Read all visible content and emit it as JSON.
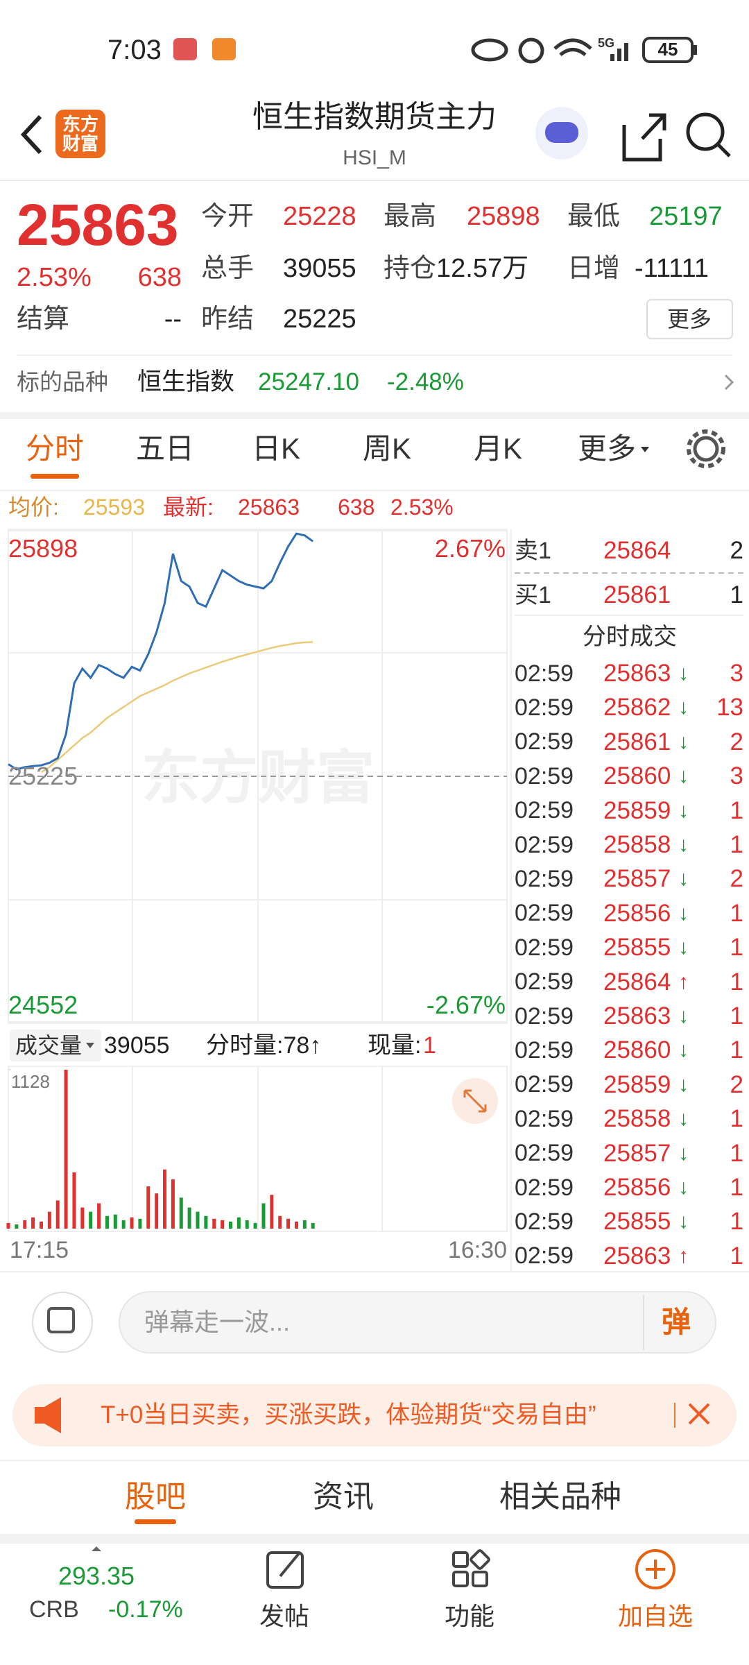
{
  "status_bar": {
    "time": "7:03",
    "network": "5G",
    "battery": "45"
  },
  "header": {
    "logo": [
      "东方",
      "财富"
    ],
    "title": "恒生指数期货主力",
    "subtitle": "HSI_M"
  },
  "quote": {
    "price": "25863",
    "change_pct": "2.53%",
    "change": "638",
    "fields": [
      {
        "label": "今开",
        "value": "25228",
        "color": "#e0302f"
      },
      {
        "label": "最高",
        "value": "25898",
        "color": "#e0302f"
      },
      {
        "label": "最低",
        "value": "25197",
        "color": "#1a9a36"
      },
      {
        "label": "总手",
        "value": "39055",
        "color": "#222222"
      },
      {
        "label": "持仓",
        "value": "12.57万",
        "color": "#222222"
      },
      {
        "label": "日增",
        "value": "-11111",
        "color": "#222222"
      },
      {
        "label": "结算",
        "value": "--",
        "color": "#222222"
      },
      {
        "label": "昨结",
        "value": "25225",
        "color": "#222222"
      }
    ],
    "more_button": "更多"
  },
  "underlying": {
    "label": "标的品种",
    "name": "恒生指数",
    "price": "25247.10",
    "change_pct": "-2.48%"
  },
  "tabs": {
    "items": [
      "分时",
      "五日",
      "日K",
      "周K",
      "月K",
      "更多"
    ],
    "active": 0
  },
  "chart": {
    "avg_label": "均价:",
    "avg_value": "25593",
    "latest_label": "最新:",
    "latest_value": "25863",
    "latest_change": "638",
    "latest_pct": "2.53%",
    "watermark": "东方财富",
    "ylim": [
      24552,
      25898
    ],
    "yticks": [
      25898,
      25225,
      24552
    ],
    "pct_top": "2.67%",
    "pct_bottom": "-2.67%",
    "price": {
      "color": "#2f6db5",
      "values": [
        25258,
        25244,
        25250,
        25253,
        25255,
        25262,
        25275,
        25340,
        25480,
        25520,
        25495,
        25530,
        25520,
        25505,
        25495,
        25525,
        25515,
        25560,
        25620,
        25700,
        25835,
        25760,
        25745,
        25700,
        25690,
        25740,
        25790,
        25775,
        25760,
        25750,
        25745,
        25740,
        25760,
        25810,
        25855,
        25890,
        25885,
        25869
      ]
    },
    "average": {
      "color": "#ebcb7a",
      "values": [
        null,
        null,
        null,
        null,
        25236,
        25250,
        25270,
        25290,
        25310,
        25330,
        25345,
        25365,
        25385,
        25400,
        25415,
        25430,
        25445,
        25455,
        25465,
        25475,
        25487,
        25497,
        25507,
        25515,
        25523,
        25531,
        25539,
        25546,
        25553,
        25559,
        25565,
        25571,
        25577,
        25582,
        25586,
        25590,
        25592,
        25593
      ]
    },
    "volume": {
      "label": "成交量",
      "total": "39055",
      "minute": "分时量:78↑",
      "current_label": "现量:",
      "current_value": "1",
      "ylim": [
        0,
        1128
      ],
      "yticks": [
        1128
      ],
      "up_color": "#e0302f",
      "down_color": "#1a9a36",
      "values": [
        40,
        30,
        60,
        80,
        50,
        120,
        200,
        1128,
        400,
        150,
        120,
        180,
        90,
        100,
        60,
        80,
        70,
        300,
        250,
        420,
        350,
        220,
        150,
        120,
        90,
        70,
        60,
        50,
        80,
        60,
        40,
        180,
        240,
        90,
        70,
        50,
        60,
        40
      ]
    },
    "time_axis": {
      "start": "17:15",
      "end": "16:30"
    }
  },
  "order_book": [
    {
      "label": "卖1",
      "price": "25864",
      "volume": "2"
    },
    {
      "label": "买1",
      "price": "25861",
      "volume": "1"
    }
  ],
  "trades": {
    "title": "分时成交",
    "rows": [
      {
        "time": "02:59",
        "price": "25863",
        "arrow": "↓",
        "volume": "3",
        "color": "#1a9a36"
      },
      {
        "time": "02:59",
        "price": "25862",
        "arrow": "↓",
        "volume": "13",
        "color": "#1a9a36"
      },
      {
        "time": "02:59",
        "price": "25861",
        "arrow": "↓",
        "volume": "2",
        "color": "#1a9a36"
      },
      {
        "time": "02:59",
        "price": "25860",
        "arrow": "↓",
        "volume": "3",
        "color": "#1a9a36"
      },
      {
        "time": "02:59",
        "price": "25859",
        "arrow": "↓",
        "volume": "1",
        "color": "#1a9a36"
      },
      {
        "time": "02:59",
        "price": "25858",
        "arrow": "↓",
        "volume": "1",
        "color": "#1a9a36"
      },
      {
        "time": "02:59",
        "price": "25857",
        "arrow": "↓",
        "volume": "2",
        "color": "#1a9a36"
      },
      {
        "time": "02:59",
        "price": "25856",
        "arrow": "↓",
        "volume": "1",
        "color": "#1a9a36"
      },
      {
        "time": "02:59",
        "price": "25855",
        "arrow": "↓",
        "volume": "1",
        "color": "#1a9a36"
      },
      {
        "time": "02:59",
        "price": "25864",
        "arrow": "↑",
        "volume": "1",
        "color": "#e0302f"
      },
      {
        "time": "02:59",
        "price": "25863",
        "arrow": "↓",
        "volume": "1",
        "color": "#1a9a36"
      },
      {
        "time": "02:59",
        "price": "25860",
        "arrow": "↓",
        "volume": "1",
        "color": "#1a9a36"
      },
      {
        "time": "02:59",
        "price": "25859",
        "arrow": "↓",
        "volume": "2",
        "color": "#1a9a36"
      },
      {
        "time": "02:59",
        "price": "25858",
        "arrow": "↓",
        "volume": "1",
        "color": "#1a9a36"
      },
      {
        "time": "02:59",
        "price": "25857",
        "arrow": "↓",
        "volume": "1",
        "color": "#1a9a36"
      },
      {
        "time": "02:59",
        "price": "25856",
        "arrow": "↓",
        "volume": "1",
        "color": "#1a9a36"
      },
      {
        "time": "02:59",
        "price": "25855",
        "arrow": "↓",
        "volume": "1",
        "color": "#1a9a36"
      },
      {
        "time": "02:59",
        "price": "25863",
        "arrow": "↑",
        "volume": "1",
        "color": "#e0302f"
      }
    ]
  },
  "comment": {
    "placeholder": "弹幕走一波...",
    "button": "弹"
  },
  "banner": {
    "text": "T+0当日买卖，买涨买跌，体验期货“交易自由”"
  },
  "bottom_tabs": {
    "items": [
      "股吧",
      "资讯",
      "相关品种"
    ],
    "active": 0
  },
  "nav": {
    "index_value": "293.35",
    "index_name": "CRB",
    "index_change": "-0.17%",
    "items": [
      "发帖",
      "功能",
      "加自选"
    ]
  }
}
